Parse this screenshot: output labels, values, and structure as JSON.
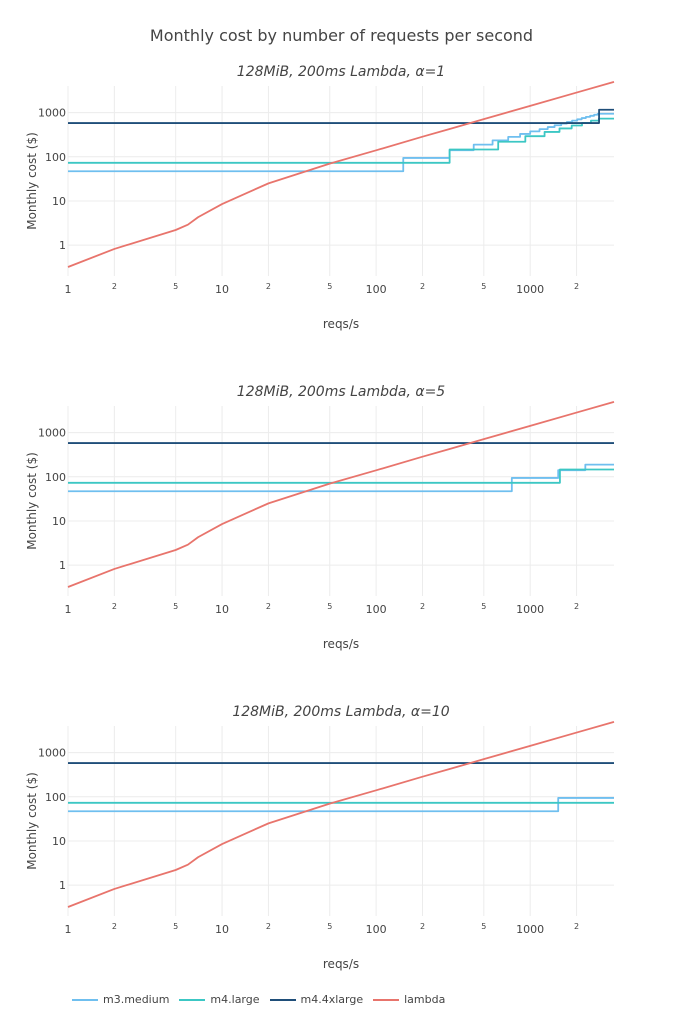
{
  "figure_title": "Monthly cost by number of requests per second",
  "colors": {
    "m3.medium": "#6fbfef",
    "m4.large": "#3cc7c4",
    "m4.4xlarge": "#1f4e79",
    "lambda": "#e8746c",
    "grid": "#ececec"
  },
  "legend": [
    {
      "name": "m3.medium",
      "color": "#6fbfef"
    },
    {
      "name": "m4.large",
      "color": "#3cc7c4"
    },
    {
      "name": "m4.4xlarge",
      "color": "#1f4e79"
    },
    {
      "name": "lambda",
      "color": "#e8746c"
    }
  ],
  "chart_data": [
    {
      "type": "line",
      "title": "128MiB, 200ms Lambda, α=1",
      "xlabel": "reqs/s",
      "ylabel": "Monthly cost ($)",
      "xscale": "log",
      "yscale": "log",
      "xlim": [
        1,
        3500
      ],
      "ylim": [
        0.2,
        4000
      ],
      "x_ticks": [
        "1",
        "2",
        "5",
        "10",
        "2",
        "5",
        "100",
        "2",
        "5",
        "1000",
        "2"
      ],
      "y_ticks": [
        "1",
        "10",
        "100",
        "1000"
      ],
      "grid": true,
      "series": [
        {
          "name": "m3.medium",
          "shape": "step",
          "points": [
            [
              1,
              47
            ],
            [
              150,
              47
            ],
            [
              150,
              94
            ],
            [
              300,
              94
            ],
            [
              300,
              141
            ],
            [
              430,
              141
            ],
            [
              430,
              188
            ],
            [
              570,
              188
            ],
            [
              570,
              235
            ],
            [
              720,
              235
            ],
            [
              720,
              282
            ],
            [
              860,
              282
            ],
            [
              860,
              329
            ],
            [
              1000,
              329
            ],
            [
              1000,
              376
            ],
            [
              1150,
              376
            ],
            [
              1150,
              423
            ],
            [
              1300,
              423
            ],
            [
              1300,
              470
            ],
            [
              1440,
              470
            ],
            [
              1440,
              517
            ],
            [
              1590,
              517
            ],
            [
              1590,
              564
            ],
            [
              1730,
              564
            ],
            [
              1730,
              611
            ],
            [
              1870,
              611
            ],
            [
              1870,
              658
            ],
            [
              2020,
              658
            ],
            [
              2020,
              705
            ],
            [
              2160,
              705
            ],
            [
              2160,
              752
            ],
            [
              2300,
              752
            ],
            [
              2300,
              799
            ],
            [
              2450,
              799
            ],
            [
              2450,
              846
            ],
            [
              2600,
              846
            ],
            [
              2600,
              893
            ],
            [
              2740,
              893
            ],
            [
              2740,
              940
            ],
            [
              3500,
              940
            ]
          ]
        },
        {
          "name": "m4.large",
          "shape": "step",
          "points": [
            [
              1,
              73
            ],
            [
              150,
              73
            ],
            [
              300,
              73
            ],
            [
              300,
              146
            ],
            [
              620,
              146
            ],
            [
              620,
              219
            ],
            [
              930,
              219
            ],
            [
              930,
              292
            ],
            [
              1240,
              292
            ],
            [
              1240,
              365
            ],
            [
              1550,
              365
            ],
            [
              1550,
              438
            ],
            [
              1860,
              438
            ],
            [
              1860,
              511
            ],
            [
              2170,
              511
            ],
            [
              2170,
              584
            ],
            [
              2480,
              584
            ],
            [
              2480,
              657
            ],
            [
              2790,
              657
            ],
            [
              2790,
              730
            ],
            [
              3500,
              730
            ]
          ]
        },
        {
          "name": "m4.4xlarge",
          "shape": "step",
          "points": [
            [
              1,
              580
            ],
            [
              2800,
              580
            ],
            [
              2800,
              1160
            ],
            [
              3500,
              1160
            ]
          ]
        },
        {
          "name": "lambda",
          "points": [
            [
              1,
              0.32
            ],
            [
              2,
              0.82
            ],
            [
              5,
              2.2
            ],
            [
              6,
              2.9
            ],
            [
              7,
              4.3
            ],
            [
              10,
              8.5
            ],
            [
              15,
              16
            ],
            [
              20,
              25
            ],
            [
              50,
              70
            ],
            [
              100,
              140
            ],
            [
              200,
              285
            ],
            [
              300,
              425
            ],
            [
              500,
              710
            ],
            [
              1000,
              1420
            ],
            [
              2000,
              2840
            ],
            [
              3500,
              4970
            ]
          ]
        }
      ]
    },
    {
      "type": "line",
      "title": "128MiB, 200ms Lambda, α=5",
      "xlabel": "reqs/s",
      "ylabel": "Monthly cost ($)",
      "xscale": "log",
      "yscale": "log",
      "xlim": [
        1,
        3500
      ],
      "ylim": [
        0.2,
        4000
      ],
      "x_ticks": [
        "1",
        "2",
        "5",
        "10",
        "2",
        "5",
        "100",
        "2",
        "5",
        "1000",
        "2"
      ],
      "y_ticks": [
        "1",
        "10",
        "100",
        "1000"
      ],
      "grid": true,
      "series": [
        {
          "name": "m3.medium",
          "shape": "step",
          "points": [
            [
              1,
              47
            ],
            [
              760,
              47
            ],
            [
              760,
              94
            ],
            [
              1520,
              94
            ],
            [
              1520,
              141
            ],
            [
              2280,
              141
            ],
            [
              2280,
              188
            ],
            [
              3500,
              188
            ]
          ]
        },
        {
          "name": "m4.large",
          "shape": "step",
          "points": [
            [
              1,
              73
            ],
            [
              1560,
              73
            ],
            [
              1560,
              146
            ],
            [
              3500,
              146
            ]
          ]
        },
        {
          "name": "m4.4xlarge",
          "shape": "step",
          "points": [
            [
              1,
              580
            ],
            [
              3500,
              580
            ]
          ]
        },
        {
          "name": "lambda",
          "points": [
            [
              1,
              0.32
            ],
            [
              2,
              0.82
            ],
            [
              5,
              2.2
            ],
            [
              6,
              2.9
            ],
            [
              7,
              4.3
            ],
            [
              10,
              8.5
            ],
            [
              15,
              16
            ],
            [
              20,
              25
            ],
            [
              50,
              70
            ],
            [
              100,
              140
            ],
            [
              200,
              285
            ],
            [
              300,
              425
            ],
            [
              500,
              710
            ],
            [
              1000,
              1420
            ],
            [
              2000,
              2840
            ],
            [
              3500,
              4970
            ]
          ]
        }
      ]
    },
    {
      "type": "line",
      "title": "128MiB, 200ms Lambda, α=10",
      "xlabel": "reqs/s",
      "ylabel": "Monthly cost ($)",
      "xscale": "log",
      "yscale": "log",
      "xlim": [
        1,
        3500
      ],
      "ylim": [
        0.2,
        4000
      ],
      "x_ticks": [
        "1",
        "2",
        "5",
        "10",
        "2",
        "5",
        "100",
        "2",
        "5",
        "1000",
        "2"
      ],
      "y_ticks": [
        "1",
        "10",
        "100",
        "1000"
      ],
      "grid": true,
      "series": [
        {
          "name": "m3.medium",
          "shape": "step",
          "points": [
            [
              1,
              47
            ],
            [
              1520,
              47
            ],
            [
              1520,
              94
            ],
            [
              3500,
              94
            ]
          ]
        },
        {
          "name": "m4.large",
          "shape": "step",
          "points": [
            [
              1,
              73
            ],
            [
              3500,
              73
            ]
          ]
        },
        {
          "name": "m4.4xlarge",
          "shape": "step",
          "points": [
            [
              1,
              580
            ],
            [
              3500,
              580
            ]
          ]
        },
        {
          "name": "lambda",
          "points": [
            [
              1,
              0.32
            ],
            [
              2,
              0.82
            ],
            [
              5,
              2.2
            ],
            [
              6,
              2.9
            ],
            [
              7,
              4.3
            ],
            [
              10,
              8.5
            ],
            [
              15,
              16
            ],
            [
              20,
              25
            ],
            [
              50,
              70
            ],
            [
              100,
              140
            ],
            [
              200,
              285
            ],
            [
              300,
              425
            ],
            [
              500,
              710
            ],
            [
              1000,
              1420
            ],
            [
              2000,
              2840
            ],
            [
              3500,
              4970
            ]
          ]
        }
      ]
    }
  ]
}
